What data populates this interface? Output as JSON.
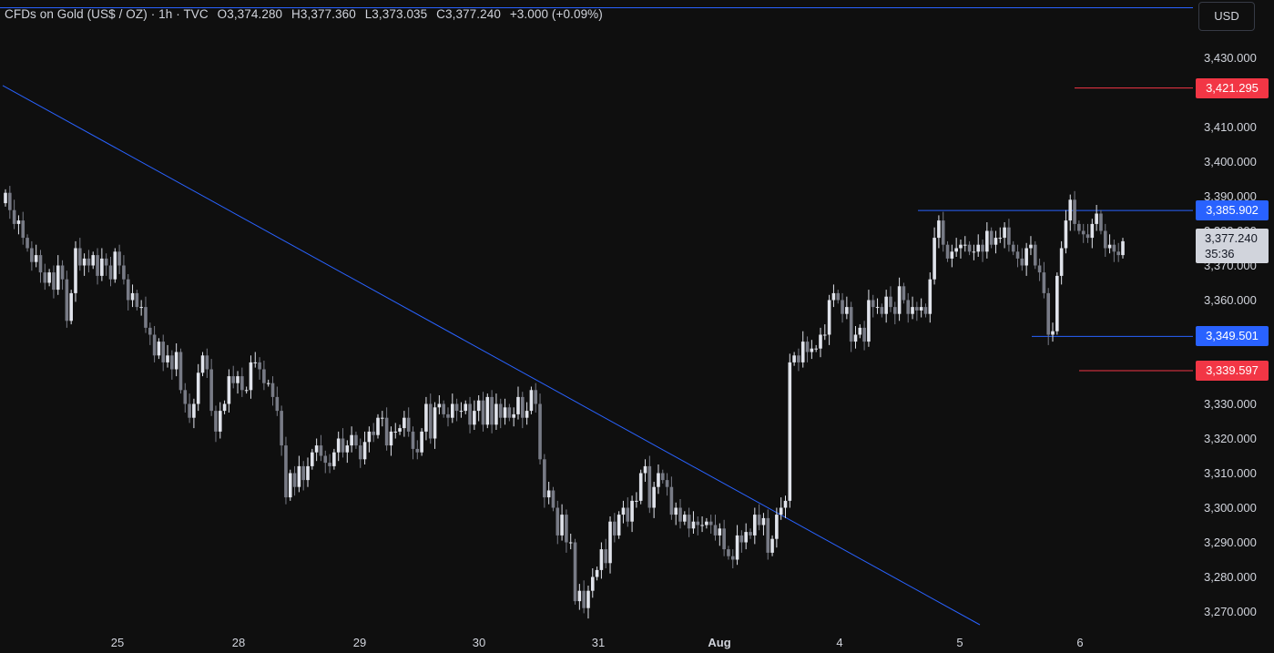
{
  "header": {
    "symbol": "CFDs on Gold (US$ / OZ)",
    "timeframe": "1h",
    "source": "TVC",
    "open": "O3,374.280",
    "high": "H3,377.360",
    "low": "L3,373.035",
    "close": "C3,377.240",
    "change": "+3.000 (+0.09%)"
  },
  "currency_button": "USD",
  "colors": {
    "background": "#0f0f0f",
    "candle_up": "#e0e3eb",
    "candle_down": "#787b86",
    "trendline": "#2962ff",
    "support_resistance": "#2962ff",
    "target_line": "#f23645"
  },
  "levels": {
    "upper_target": "3,421.295",
    "resistance": "3,385.902",
    "current_price": "3,377.240",
    "countdown": "35:36",
    "support": "3,349.501",
    "lower_target": "3,339.597"
  },
  "chart_data": {
    "type": "candlestick",
    "title": "CFDs on Gold (US$ / OZ) · 1h · TVC",
    "x_labels": [
      "25",
      "28",
      "29",
      "30",
      "31",
      "Aug",
      "4",
      "5",
      "6"
    ],
    "y_ticks": [
      "3,430.000",
      "3,410.000",
      "3,400.000",
      "3,390.000",
      "3,380.000",
      "3,370.000",
      "3,360.000",
      "3,330.000",
      "3,320.000",
      "3,310.000",
      "3,300.000",
      "3,290.000",
      "3,280.000",
      "3,270.000"
    ],
    "ylim": [
      3264,
      3435
    ],
    "grid": false,
    "ohlc_path": [
      3388,
      3391,
      3386,
      3382,
      3383,
      3378,
      3375,
      3371,
      3373,
      3368,
      3365,
      3368,
      3363,
      3370,
      3366,
      3354,
      3362,
      3375,
      3370,
      3372,
      3370,
      3373,
      3367,
      3372,
      3370,
      3366,
      3374,
      3370,
      3366,
      3360,
      3362,
      3358,
      3358,
      3352,
      3350,
      3344,
      3348,
      3342,
      3344,
      3340,
      3345,
      3334,
      3330,
      3326,
      3330,
      3339,
      3344,
      3340,
      3328,
      3322,
      3328,
      3330,
      3338,
      3336,
      3338,
      3334,
      3334,
      3342,
      3342,
      3340,
      3336,
      3336,
      3332,
      3328,
      3318,
      3303,
      3310,
      3306,
      3312,
      3308,
      3312,
      3316,
      3318,
      3315,
      3313,
      3312,
      3316,
      3320,
      3316,
      3318,
      3321,
      3318,
      3314,
      3319,
      3322,
      3321,
      3326,
      3326,
      3318,
      3322,
      3322,
      3323,
      3326,
      3322,
      3317,
      3316,
      3322,
      3330,
      3320,
      3329,
      3330,
      3327,
      3326,
      3330,
      3328,
      3328,
      3330,
      3324,
      3328,
      3331,
      3324,
      3332,
      3324,
      3330,
      3326,
      3329,
      3326,
      3327,
      3332,
      3326,
      3328,
      3334,
      3330,
      3314,
      3303,
      3305,
      3300,
      3292,
      3298,
      3290,
      3290,
      3273,
      3276,
      3271,
      3276,
      3280,
      3282,
      3288,
      3284,
      3296,
      3292,
      3298,
      3300,
      3296,
      3302,
      3302,
      3310,
      3312,
      3300,
      3306,
      3310,
      3308,
      3306,
      3298,
      3300,
      3296,
      3298,
      3294,
      3296,
      3295,
      3295,
      3296,
      3295,
      3292,
      3294,
      3288,
      3286,
      3285,
      3292,
      3290,
      3293,
      3292,
      3298,
      3295,
      3297,
      3287,
      3291,
      3298,
      3300,
      3302,
      3342,
      3344,
      3342,
      3348,
      3345,
      3346,
      3346,
      3350,
      3350,
      3360,
      3362,
      3360,
      3356,
      3358,
      3348,
      3350,
      3352,
      3348,
      3360,
      3358,
      3358,
      3356,
      3361,
      3358,
      3356,
      3364,
      3360,
      3356,
      3358,
      3357,
      3358,
      3356,
      3366,
      3378,
      3383,
      3376,
      3372,
      3374,
      3375,
      3376,
      3376,
      3374,
      3374,
      3376,
      3374,
      3380,
      3376,
      3378,
      3378,
      3381,
      3376,
      3374,
      3372,
      3370,
      3375,
      3376,
      3370,
      3368,
      3362,
      3350,
      3351,
      3367,
      3375,
      3383,
      3389,
      3382,
      3380,
      3379,
      3378,
      3382,
      3385,
      3380,
      3375,
      3376,
      3374,
      3373,
      3377
    ],
    "trendline": {
      "from_value": 3422,
      "to_value": 3264
    },
    "horizontal_levels": [
      3421.295,
      3385.902,
      3349.501,
      3339.597
    ]
  }
}
